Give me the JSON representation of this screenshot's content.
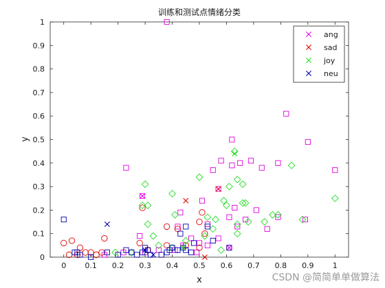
{
  "chart_data": {
    "type": "scatter",
    "title": "训练和测试点情绪分类",
    "xlabel": "x",
    "ylabel": "y",
    "xlim": [
      -0.05,
      1.05
    ],
    "ylim": [
      0,
      1
    ],
    "xticks": [
      "0",
      "0.1",
      "0.2",
      "0.3",
      "0.4",
      "0.5",
      "0.6",
      "0.7",
      "0.8",
      "0.9",
      "1"
    ],
    "yticks": [
      "0",
      "0.1",
      "0.2",
      "0.3",
      "0.4",
      "0.5",
      "0.6",
      "0.7",
      "0.8",
      "0.9",
      "1"
    ],
    "grid": false,
    "legend_position": "top-right",
    "legend": [
      {
        "name": "ang",
        "color": "#e000e0",
        "marker": "x"
      },
      {
        "name": "sad",
        "color": "#e00000",
        "marker": "x"
      },
      {
        "name": "joy",
        "color": "#22dd22",
        "marker": "x"
      },
      {
        "name": "neu",
        "color": "#0000b0",
        "marker": "x"
      }
    ],
    "series": [
      {
        "name": "ang-train",
        "color": "#e000e0",
        "marker": "square",
        "points": [
          [
            0.38,
            1.0
          ],
          [
            0.82,
            0.61
          ],
          [
            0.62,
            0.5
          ],
          [
            0.9,
            0.49
          ],
          [
            0.23,
            0.38
          ],
          [
            0.55,
            0.37
          ],
          [
            0.58,
            0.41
          ],
          [
            0.62,
            0.39
          ],
          [
            0.65,
            0.4
          ],
          [
            0.69,
            0.41
          ],
          [
            0.73,
            0.38
          ],
          [
            0.79,
            0.4
          ],
          [
            1.0,
            0.37
          ],
          [
            0.29,
            0.26
          ],
          [
            0.43,
            0.19
          ],
          [
            0.51,
            0.24
          ],
          [
            0.57,
            0.29
          ],
          [
            0.63,
            0.21
          ],
          [
            0.71,
            0.2
          ],
          [
            0.61,
            0.17
          ],
          [
            0.64,
            0.13
          ],
          [
            0.67,
            0.16
          ],
          [
            0.75,
            0.12
          ],
          [
            0.79,
            0.17
          ],
          [
            0.89,
            0.16
          ],
          [
            0.42,
            0.13
          ],
          [
            0.47,
            0.08
          ],
          [
            0.5,
            0.06
          ],
          [
            0.53,
            0.14
          ],
          [
            0.57,
            0.08
          ],
          [
            0.61,
            0.04
          ],
          [
            0.28,
            0.09
          ],
          [
            0.35,
            0.03
          ],
          [
            0.41,
            0.03
          ],
          [
            0.44,
            0.05
          ],
          [
            0.49,
            0.02
          ],
          [
            0.53,
            0.05
          ],
          [
            0.15,
            0.01
          ],
          [
            0.22,
            0.02
          ],
          [
            0.3,
            0.02
          ]
        ]
      },
      {
        "name": "sad-train",
        "color": "#e00000",
        "marker": "circle",
        "points": [
          [
            0.0,
            0.06
          ],
          [
            0.03,
            0.07
          ],
          [
            0.06,
            0.04
          ],
          [
            0.1,
            0.02
          ],
          [
            0.12,
            0.01
          ],
          [
            0.14,
            0.02
          ],
          [
            0.15,
            0.08
          ],
          [
            0.02,
            0.01
          ],
          [
            0.05,
            0.01
          ],
          [
            0.08,
            0.02
          ],
          [
            0.29,
            0.21
          ],
          [
            0.28,
            0.06
          ],
          [
            0.31,
            0.03
          ],
          [
            0.38,
            0.13
          ],
          [
            0.42,
            0.12
          ],
          [
            0.5,
            0.15
          ],
          [
            0.51,
            0.19
          ],
          [
            0.52,
            0.1
          ],
          [
            0.38,
            0.05
          ],
          [
            0.45,
            0.05
          ],
          [
            0.5,
            0.04
          ]
        ]
      },
      {
        "name": "joy-train",
        "color": "#22dd22",
        "marker": "diamond",
        "points": [
          [
            0.3,
            0.31
          ],
          [
            0.29,
            0.22
          ],
          [
            0.31,
            0.22
          ],
          [
            0.4,
            0.27
          ],
          [
            0.41,
            0.18
          ],
          [
            0.5,
            0.34
          ],
          [
            0.53,
            0.17
          ],
          [
            0.55,
            0.12
          ],
          [
            0.56,
            0.16
          ],
          [
            0.59,
            0.24
          ],
          [
            0.6,
            0.22
          ],
          [
            0.61,
            0.3
          ],
          [
            0.63,
            0.45
          ],
          [
            0.64,
            0.33
          ],
          [
            0.66,
            0.31
          ],
          [
            0.66,
            0.23
          ],
          [
            0.67,
            0.23
          ],
          [
            0.64,
            0.1
          ],
          [
            0.64,
            0.14
          ],
          [
            0.68,
            0.15
          ],
          [
            0.74,
            0.15
          ],
          [
            0.77,
            0.18
          ],
          [
            0.79,
            0.18
          ],
          [
            0.84,
            0.39
          ],
          [
            0.88,
            0.16
          ],
          [
            1.0,
            0.25
          ],
          [
            0.31,
            0.14
          ],
          [
            0.33,
            0.09
          ],
          [
            0.35,
            0.05
          ],
          [
            0.4,
            0.04
          ],
          [
            0.45,
            0.07
          ],
          [
            0.52,
            0.09
          ],
          [
            0.58,
            0.03
          ],
          [
            0.19,
            0.02
          ],
          [
            0.25,
            0.02
          ]
        ]
      },
      {
        "name": "neu-train",
        "color": "#0000b0",
        "marker": "square",
        "points": [
          [
            0.0,
            0.16
          ],
          [
            0.04,
            0.02
          ],
          [
            0.05,
            0.02
          ],
          [
            0.06,
            0.01
          ],
          [
            0.1,
            0.0
          ],
          [
            0.16,
            0.02
          ],
          [
            0.2,
            0.01
          ],
          [
            0.23,
            0.03
          ],
          [
            0.25,
            0.02
          ],
          [
            0.27,
            0.01
          ],
          [
            0.29,
            0.02
          ],
          [
            0.3,
            0.04
          ],
          [
            0.31,
            0.03
          ],
          [
            0.32,
            0.01
          ],
          [
            0.36,
            0.01
          ],
          [
            0.38,
            0.02
          ],
          [
            0.39,
            0.03
          ],
          [
            0.4,
            0.04
          ],
          [
            0.42,
            0.03
          ],
          [
            0.44,
            0.04
          ],
          [
            0.45,
            0.03
          ],
          [
            0.47,
            0.02
          ],
          [
            0.48,
            0.06
          ],
          [
            0.43,
            0.1
          ],
          [
            0.45,
            0.13
          ],
          [
            0.53,
            0.13
          ],
          [
            0.55,
            0.07
          ],
          [
            0.61,
            0.04
          ]
        ]
      },
      {
        "name": "ang-test",
        "color": "#e000e0",
        "marker": "x",
        "points": [
          [
            0.29,
            0.26
          ],
          [
            0.61,
            0.04
          ]
        ]
      },
      {
        "name": "sad-test",
        "color": "#e00000",
        "marker": "x",
        "points": [
          [
            0.45,
            0.24
          ],
          [
            0.57,
            0.29
          ],
          [
            0.52,
            0.0
          ]
        ]
      },
      {
        "name": "joy-test",
        "color": "#22dd22",
        "marker": "x",
        "points": [
          [
            0.63,
            0.44
          ],
          [
            0.44,
            0.04
          ]
        ]
      },
      {
        "name": "neu-test",
        "color": "#0000b0",
        "marker": "x",
        "points": [
          [
            0.16,
            0.14
          ],
          [
            0.3,
            0.03
          ],
          [
            0.33,
            0.01
          ]
        ]
      }
    ]
  },
  "watermark": "CSDN @简简单单做算法"
}
